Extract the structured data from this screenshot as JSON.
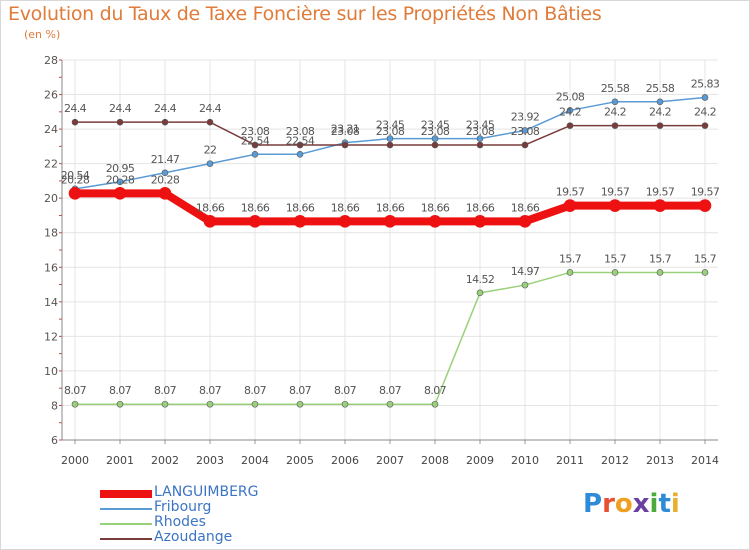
{
  "title": "Evolution du Taux de Taxe Foncière sur les Propriétés Non Bâties",
  "unit_label": "(en %)",
  "logo": {
    "text": "Proxiti",
    "letters": [
      "P",
      "r",
      "o",
      "x",
      "i",
      "t",
      "i"
    ],
    "colors": [
      "#2e8bd8",
      "#e8512f",
      "#f0a020",
      "#6a3fa0",
      "#4aaa3c",
      "#2e8bd8",
      "#e8b030"
    ]
  },
  "chart_data": {
    "type": "line",
    "title": "Evolution du Taux de Taxe Foncière sur les Propriétés Non Bâties",
    "ylabel": "(en %)",
    "xlabel": "",
    "categories": [
      2000,
      2001,
      2002,
      2003,
      2004,
      2005,
      2006,
      2007,
      2008,
      2009,
      2010,
      2011,
      2012,
      2013,
      2014
    ],
    "ylim": [
      6,
      28
    ],
    "yticks": [
      6,
      8,
      10,
      12,
      14,
      16,
      18,
      20,
      22,
      24,
      26,
      28
    ],
    "grid": true,
    "legend_position": "bottom-left",
    "series": [
      {
        "name": "LANGUIMBERG",
        "color": "#ee1111",
        "values": [
          20.28,
          20.28,
          20.28,
          18.66,
          18.66,
          18.66,
          18.66,
          18.66,
          18.66,
          18.66,
          18.66,
          19.57,
          19.57,
          19.57,
          19.57
        ],
        "labels": [
          "20.28",
          "20.28",
          "20.28",
          "18.66",
          "18.66",
          "18.66",
          "18.66",
          "18.66",
          "18.66",
          "18.66",
          "18.66",
          "19.57",
          "19.57",
          "19.57",
          "19.57"
        ]
      },
      {
        "name": "Fribourg",
        "color": "#5b9bd5",
        "values": [
          20.54,
          20.95,
          21.47,
          22.0,
          22.54,
          22.54,
          23.21,
          23.45,
          23.45,
          23.45,
          23.92,
          25.08,
          25.58,
          25.58,
          25.83
        ],
        "labels": [
          "20.54",
          "20.95",
          "21.47",
          "22",
          "22.54",
          "22.54",
          "23.21",
          "23.45",
          "23.45",
          "23.45",
          "23.92",
          "25.08",
          "25.58",
          "25.58",
          "25.83"
        ]
      },
      {
        "name": "Rhodes",
        "color": "#99d17a",
        "values": [
          8.07,
          8.07,
          8.07,
          8.07,
          8.07,
          8.07,
          8.07,
          8.07,
          8.07,
          14.52,
          14.97,
          15.7,
          15.7,
          15.7,
          15.7
        ],
        "labels": [
          "8.07",
          "8.07",
          "8.07",
          "8.07",
          "8.07",
          "8.07",
          "8.07",
          "8.07",
          "8.07",
          "14.52",
          "14.97",
          "15.7",
          "15.7",
          "15.7",
          "15.7"
        ]
      },
      {
        "name": "Azoudange",
        "color": "#7a3b3b",
        "values": [
          24.4,
          24.4,
          24.4,
          24.4,
          23.08,
          23.08,
          23.08,
          23.08,
          23.08,
          23.08,
          23.08,
          24.2,
          24.2,
          24.2,
          24.2
        ],
        "labels": [
          "24.4",
          "24.4",
          "24.4",
          "24.4",
          "23.08",
          "23.08",
          "23.08",
          "23.08",
          "23.08",
          "23.08",
          "23.08",
          "24.2",
          "24.2",
          "24.2",
          "24.2"
        ]
      }
    ]
  }
}
